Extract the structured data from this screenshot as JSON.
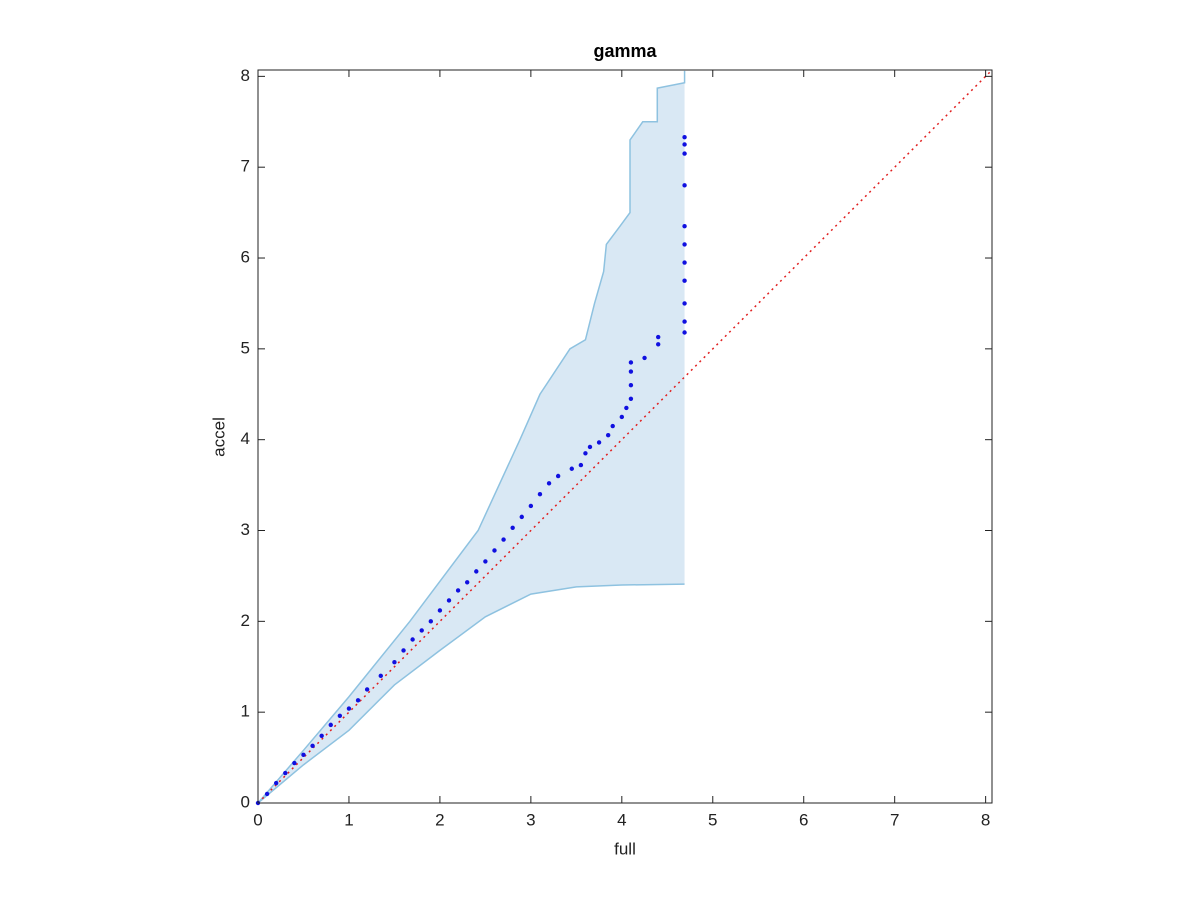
{
  "chart_data": {
    "type": "scatter",
    "title": "gamma",
    "x_label": "full",
    "y_label": "accel",
    "xlim": [
      0,
      8.07
    ],
    "ylim": [
      0,
      8.07
    ],
    "xticks": [
      0,
      1,
      2,
      3,
      4,
      5,
      6,
      7,
      8
    ],
    "yticks": [
      0,
      1,
      2,
      3,
      4,
      5,
      6,
      7,
      8
    ],
    "point_color": "#1010e0",
    "band": {
      "fill": "#d9e8f4",
      "edge": "#8ec2e0",
      "upper_x": [
        0,
        0.5,
        1,
        1.67,
        2.42,
        2.88,
        3.1,
        3.43,
        3.6,
        3.7,
        3.8,
        3.83,
        3.98,
        4.09,
        4.09,
        4.23,
        4.39,
        4.39,
        4.69,
        4.69
      ],
      "upper_y": [
        0,
        0.58,
        1.17,
        2,
        3,
        4,
        4.5,
        5,
        5.1,
        5.5,
        5.85,
        6.15,
        6.35,
        6.5,
        7.3,
        7.5,
        7.5,
        7.87,
        7.93,
        8.06
      ],
      "lower_x": [
        0,
        0.5,
        1,
        1.5,
        2,
        2.5,
        3,
        3.5,
        4,
        4.69
      ],
      "lower_y": [
        0,
        0.42,
        0.8,
        1.3,
        1.68,
        2.05,
        2.3,
        2.38,
        2.4,
        2.41
      ]
    },
    "ref_line": {
      "color": "#e02020",
      "x": [
        0,
        8.07
      ],
      "y": [
        0,
        8.07
      ]
    },
    "x": [
      0,
      0.1,
      0.2,
      0.3,
      0.4,
      0.5,
      0.6,
      0.7,
      0.8,
      0.9,
      1.0,
      1.1,
      1.2,
      1.35,
      1.5,
      1.6,
      1.7,
      1.8,
      1.9,
      2.0,
      2.1,
      2.2,
      2.3,
      2.4,
      2.5,
      2.6,
      2.7,
      2.8,
      2.9,
      3.0,
      3.1,
      3.2,
      3.3,
      3.45,
      3.55,
      3.6,
      3.65,
      3.75,
      3.85,
      3.9,
      4.0,
      4.05,
      4.1,
      4.1,
      4.1,
      4.1,
      4.25,
      4.4,
      4.4,
      4.69,
      4.69,
      4.69,
      4.69,
      4.69,
      4.69,
      4.69,
      4.69,
      4.69,
      4.69,
      4.69
    ],
    "y": [
      0,
      0.1,
      0.22,
      0.33,
      0.44,
      0.53,
      0.63,
      0.74,
      0.86,
      0.96,
      1.04,
      1.13,
      1.25,
      1.4,
      1.55,
      1.68,
      1.8,
      1.9,
      2.0,
      2.12,
      2.23,
      2.34,
      2.43,
      2.55,
      2.66,
      2.78,
      2.9,
      3.03,
      3.15,
      3.27,
      3.4,
      3.52,
      3.6,
      3.68,
      3.72,
      3.85,
      3.92,
      3.97,
      4.05,
      4.15,
      4.25,
      4.35,
      4.45,
      4.6,
      4.75,
      4.85,
      4.9,
      5.05,
      5.13,
      5.18,
      5.3,
      5.5,
      5.75,
      5.95,
      6.15,
      6.35,
      6.8,
      7.15,
      7.25,
      7.33
    ]
  }
}
